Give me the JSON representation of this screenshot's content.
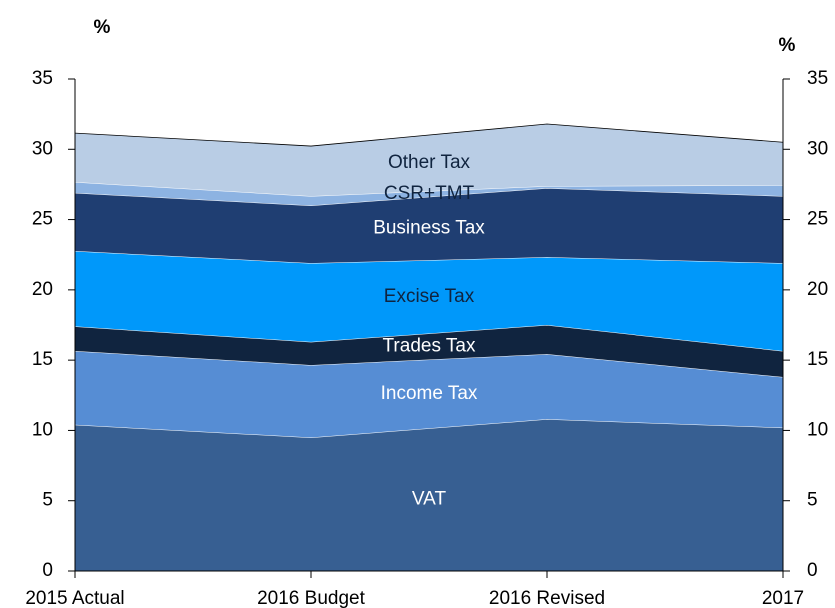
{
  "chart_data": {
    "type": "stacked_area",
    "y_label": "%",
    "y2_label": "%",
    "categories": [
      "2015 Actual",
      "2016 Budget",
      "2016 Revised",
      "2017"
    ],
    "series": [
      {
        "name": "VAT",
        "color": "#375f92",
        "label_color": "#ffffff",
        "values": [
          10.4,
          9.5,
          10.8,
          10.2
        ]
      },
      {
        "name": "Income Tax",
        "color": "#568dd4",
        "label_color": "#ffffff",
        "values": [
          5.25,
          5.15,
          4.63,
          3.6
        ]
      },
      {
        "name": "Trades Tax",
        "color": "#10243f",
        "label_color": "#ffffff",
        "values": [
          1.75,
          1.65,
          2.07,
          1.85
        ]
      },
      {
        "name": "Excise Tax",
        "color": "#0098fa",
        "label_color": "#10243f",
        "values": [
          5.36,
          5.6,
          4.83,
          6.25
        ]
      },
      {
        "name": "Business Tax",
        "color": "#1f3e72",
        "label_color": "#ffffff",
        "values": [
          4.14,
          4.1,
          4.91,
          4.77
        ]
      },
      {
        "name": "CSR+TMT",
        "color": "#8db3e2",
        "label_color": "#10243f",
        "values": [
          0.77,
          0.67,
          0.14,
          0.78
        ]
      },
      {
        "name": "Other Tax",
        "color": "#b9cde5",
        "label_color": "#10243f",
        "values": [
          3.48,
          3.56,
          4.42,
          3.05
        ]
      }
    ],
    "ylim": [
      0,
      35
    ],
    "yticks": [
      0,
      5,
      10,
      15,
      20,
      25,
      30,
      35
    ],
    "y2lim": [
      0,
      35
    ],
    "y2ticks": [
      0,
      5,
      10,
      15,
      20,
      25,
      30,
      35
    ]
  }
}
